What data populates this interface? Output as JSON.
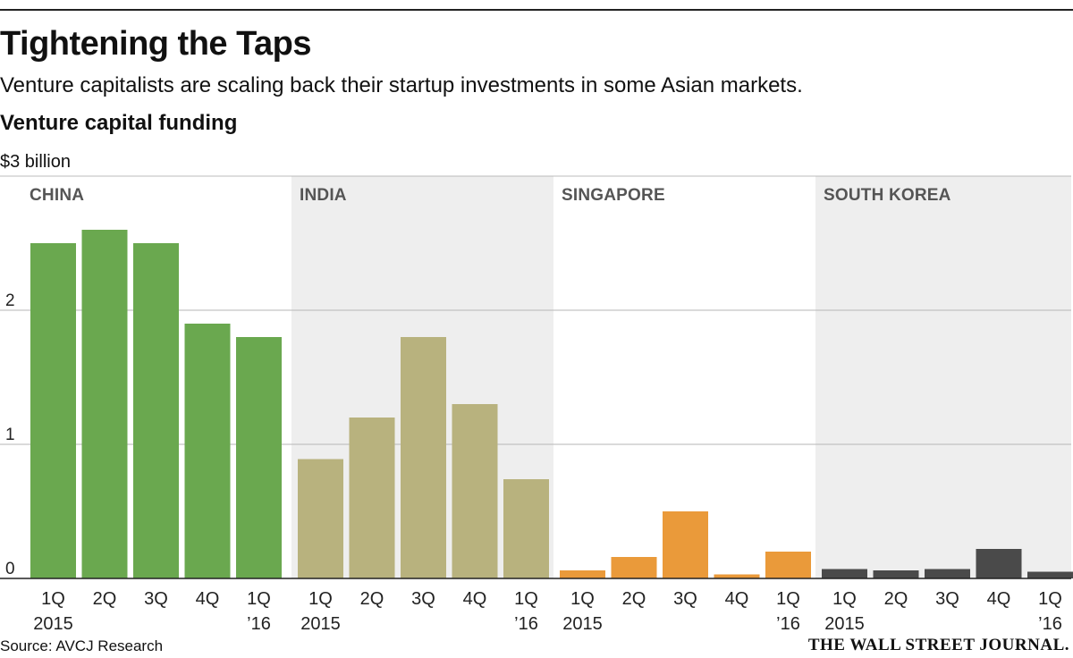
{
  "header": {
    "title": "Tightening the Taps",
    "subtitle": "Venture capitalists are scaling back their startup investments in some Asian markets.",
    "section": "Venture capital funding",
    "unit_label": "$3 billion"
  },
  "footer": {
    "source": "Source: AVCJ Research",
    "logo": "THE WALL STREET JOURNAL."
  },
  "chart_data": {
    "type": "bar",
    "title": "Venture capital funding",
    "ylabel": "$3 billion",
    "ylim": [
      0,
      3
    ],
    "yticks": [
      "0",
      "1",
      "2"
    ],
    "categories": [
      [
        "1Q",
        "2015"
      ],
      [
        "2Q",
        ""
      ],
      [
        "3Q",
        ""
      ],
      [
        "4Q",
        ""
      ],
      [
        "1Q",
        "’16"
      ]
    ],
    "series": [
      {
        "name": "CHINA",
        "color": "#6aa84f",
        "values": [
          2.5,
          2.6,
          2.5,
          1.9,
          1.8
        ]
      },
      {
        "name": "INDIA",
        "color": "#b8b27e",
        "values": [
          0.89,
          1.2,
          1.8,
          1.3,
          0.74
        ]
      },
      {
        "name": "SINGAPORE",
        "color": "#ea9a3a",
        "values": [
          0.06,
          0.16,
          0.5,
          0.03,
          0.2
        ]
      },
      {
        "name": "SOUTH KOREA",
        "color": "#4a4a4a",
        "values": [
          0.07,
          0.06,
          0.07,
          0.22,
          0.05
        ]
      }
    ]
  }
}
